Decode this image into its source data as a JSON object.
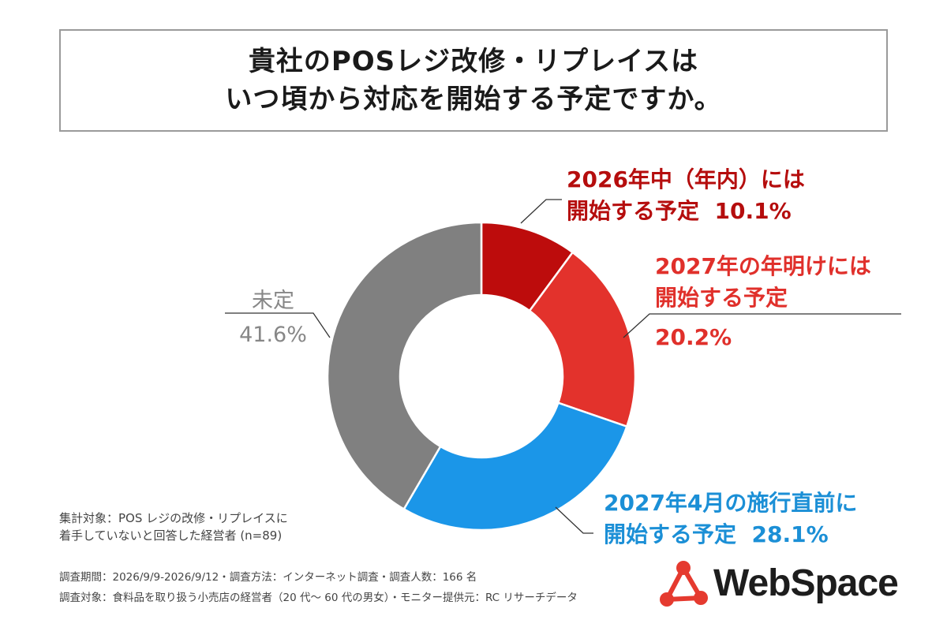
{
  "title": {
    "line1": "貴社のPOSレジ改修・リプレイスは",
    "line2": "いつ頃から対応を開始する予定ですか。"
  },
  "chart_data": {
    "type": "pie",
    "variant": "donut",
    "title": "貴社のPOSレジ改修・リプレイスはいつ頃から対応を開始する予定ですか。",
    "start": "top-12-oclock",
    "direction": "clockwise",
    "slices": [
      {
        "key": "s2026",
        "label_lines": [
          "2026年中（年内）には",
          "開始する予定"
        ],
        "value": 10.1,
        "value_label": "10.1%",
        "color": "#bd0c0c"
      },
      {
        "key": "s2027early",
        "label_lines": [
          "2027年の年明けには",
          "開始する予定"
        ],
        "value": 20.2,
        "value_label": "20.2%",
        "color": "#e3322c"
      },
      {
        "key": "s2027apr",
        "label_lines": [
          "2027年4月の施行直前に",
          "開始する予定"
        ],
        "value": 28.1,
        "value_label": "28.1%",
        "color": "#1b96e8"
      },
      {
        "key": "undecided",
        "label_lines": [
          "未定"
        ],
        "value": 41.6,
        "value_label": "41.6%",
        "color": "#808080"
      }
    ]
  },
  "note": {
    "line1": "集計対象：POS レジの改修・リプレイスに",
    "line2": "着手していないと回答した経営者 (n=89)"
  },
  "footer": {
    "line1": "調査期間：2026/9/9-2026/9/12・調査方法：インターネット調査・調査人数：166 名",
    "line2": "調査対象：食料品を取り扱う小売店の経営者（20 代～ 60 代の男女）・モニター提供元：RC リサーチデータ"
  },
  "logo": {
    "text": "WebSpace",
    "color": "#e53a2f"
  }
}
